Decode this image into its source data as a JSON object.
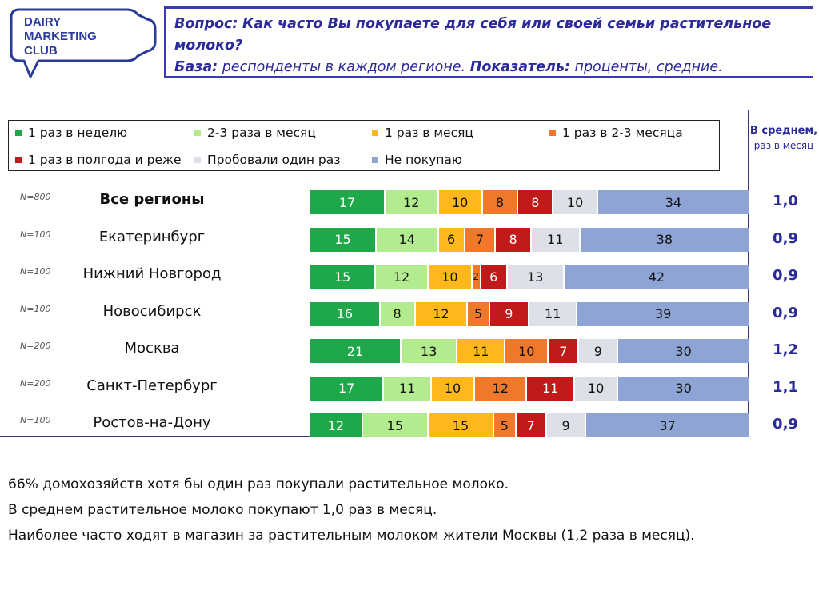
{
  "logo": {
    "line1": "DAIRY",
    "line2": "MARKETING",
    "line3": "CLUB"
  },
  "question": {
    "q_label": "Вопрос:",
    "q_text": "Как часто Вы покупаете для себя или своей семьи растительное молоко?",
    "base_label": "База:",
    "base_text": "респонденты в каждом регионе.",
    "metric_label": "Показатель:",
    "metric_text": "проценты, средние."
  },
  "avg_header": {
    "line1": "В среднем,",
    "line2": "раз в месяц"
  },
  "colors": [
    "#1ea84a",
    "#b2ec8e",
    "#ffb81c",
    "#f0782a",
    "#c01a1a",
    "#dde0e6",
    "#8ea4d4"
  ],
  "chart_data": {
    "type": "bar",
    "stacked": true,
    "orientation": "horizontal",
    "legend_position": "top",
    "categories": [
      "Все регионы",
      "Екатеринбург",
      "Нижний Новгород",
      "Новосибирск",
      "Москва",
      "Санкт-Петербург",
      "Ростов-на-Дону"
    ],
    "sample_sizes": [
      "N=800",
      "N=100",
      "N=100",
      "N=100",
      "N=200",
      "N=200",
      "N=100"
    ],
    "series": [
      {
        "name": "1 раз в неделю",
        "values": [
          17,
          15,
          15,
          16,
          21,
          17,
          12
        ]
      },
      {
        "name": "2-3 раза в месяц",
        "values": [
          12,
          14,
          12,
          8,
          13,
          11,
          15
        ]
      },
      {
        "name": "1 раз в месяц",
        "values": [
          10,
          6,
          10,
          12,
          11,
          10,
          15
        ]
      },
      {
        "name": "1 раз в 2-3 месяца",
        "values": [
          8,
          7,
          2,
          5,
          10,
          12,
          5
        ]
      },
      {
        "name": "1 раз в полгода и реже",
        "values": [
          8,
          8,
          6,
          9,
          7,
          11,
          7
        ]
      },
      {
        "name": "Пробовали один раз",
        "values": [
          10,
          11,
          13,
          11,
          9,
          10,
          9
        ]
      },
      {
        "name": "Не покупаю",
        "values": [
          34,
          38,
          42,
          39,
          30,
          30,
          37
        ]
      }
    ],
    "averages": [
      "1,0",
      "0,9",
      "0,9",
      "0,9",
      "1,2",
      "1,1",
      "0,9"
    ]
  },
  "notes": [
    "66% домохозяйств хотя бы один раз покупали растительное молоко.",
    "В среднем растительное молоко покупают 1,0 раз в месяц.",
    "Наиболее часто ходят в магазин за растительным молоком жители Москвы (1,2 раза в месяц)."
  ]
}
